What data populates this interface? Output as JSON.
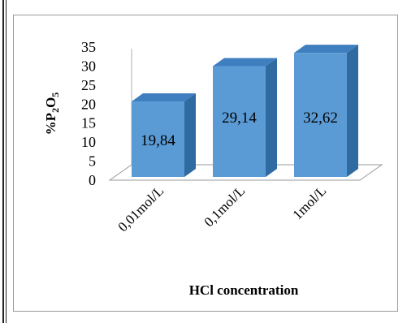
{
  "chart_data": {
    "type": "bar",
    "categories": [
      "0,01mol/L",
      "0,1mol/L",
      "1mol/L"
    ],
    "values": [
      19.84,
      29.14,
      32.62
    ],
    "data_labels": [
      "19,84",
      "29,14",
      "32,62"
    ],
    "ylabel": "%P₂O₅",
    "xlabel": "HCl concentration",
    "y_ticks": [
      "0",
      "5",
      "10",
      "15",
      "20",
      "25",
      "30",
      "35"
    ],
    "ylim": [
      0,
      35
    ],
    "bar_color": "#5b9bd5",
    "bar_side_color": "#2f6aa0",
    "bar_top_color": "#3f7fbf"
  }
}
